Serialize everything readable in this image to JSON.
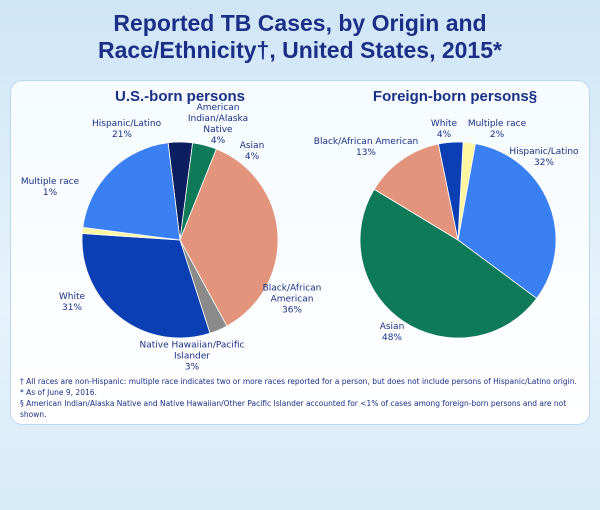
{
  "title": "Reported TB Cases, by Origin and Race/Ethnicity†, United States, 2015*",
  "chart_data": [
    {
      "type": "pie",
      "title": "U.S.-born persons",
      "categories": [
        "American Indian/Alaska Native",
        "Asian",
        "Black/African American",
        "Native Hawaiian/Pacific Islander",
        "White",
        "Multiple race",
        "Hispanic/Latino"
      ],
      "values": [
        4,
        4,
        36,
        3,
        31,
        1,
        21
      ],
      "value_labels": [
        "4%",
        "4%",
        "36%",
        "3%",
        "31%",
        "1%",
        "21%"
      ],
      "colors": [
        "#0b1f5e",
        "#0f7a57",
        "#e2947c",
        "#8a8a8a",
        "#0c3fb3",
        "#fff6a0",
        "#3b80f2"
      ]
    },
    {
      "type": "pie",
      "title": "Foreign-born persons§",
      "categories": [
        "Multiple race",
        "Hispanic/Latino",
        "Asian",
        "Black/African American",
        "White"
      ],
      "values": [
        2,
        32,
        48,
        13,
        4
      ],
      "value_labels": [
        "2%",
        "32%",
        "48%",
        "13%",
        "4%"
      ],
      "colors": [
        "#fff6a0",
        "#3b80f2",
        "#0f7a57",
        "#e2947c",
        "#0c3fb3"
      ]
    }
  ],
  "footnotes": [
    "† All races are non-Hispanic: multiple race indicates two or more races reported for a person, but does not include persons of Hispanic/Latino origin.",
    "* As of June 9, 2016.",
    "§ American Indian/Alaska Native and Native Hawaiian/Other Pacific Islander accounted for <1% of cases among foreign-born persons and are not shown."
  ]
}
